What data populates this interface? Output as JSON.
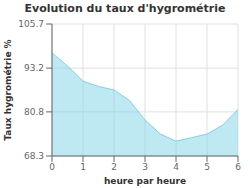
{
  "chart_data": {
    "type": "area",
    "title": "Evolution du taux d'hygrométrie",
    "xlabel": "heure par heure",
    "ylabel": "Taux hygrométrie %",
    "x": [
      0,
      0.5,
      1.0,
      1.5,
      2.0,
      2.5,
      3.0,
      3.5,
      4.0,
      4.5,
      5.0,
      5.5,
      6.0
    ],
    "values": [
      97.5,
      93.8,
      89.5,
      88.0,
      87.0,
      84.0,
      78.5,
      74.5,
      72.5,
      73.5,
      74.5,
      77.0,
      81.5
    ],
    "xlim": [
      0,
      6
    ],
    "ylim": [
      68.3,
      105.7
    ],
    "xticks": [
      0,
      1,
      2,
      3,
      4,
      5,
      6
    ],
    "yticks": [
      68.3,
      80.8,
      93.2,
      105.7
    ],
    "color": "#7dd4e8",
    "grid": true
  }
}
